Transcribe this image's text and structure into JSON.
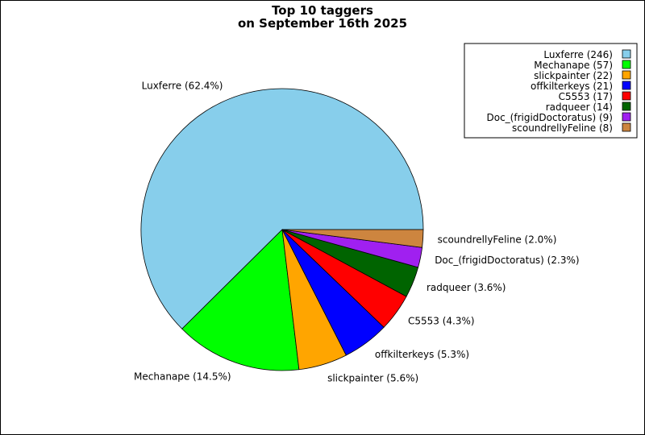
{
  "chart_data": {
    "type": "pie",
    "title_line1": "Top 10 taggers",
    "title_line2": "on September 16th 2025",
    "slices": [
      {
        "name": "Luxferre",
        "value": 246,
        "percent": "62.4%",
        "color": "#87CEEB"
      },
      {
        "name": "Mechanape",
        "value": 57,
        "percent": "14.5%",
        "color": "#00FF00"
      },
      {
        "name": "slickpainter",
        "value": 22,
        "percent": "5.6%",
        "color": "#FFA500"
      },
      {
        "name": "offkilterkeys",
        "value": 21,
        "percent": "5.3%",
        "color": "#0000FF"
      },
      {
        "name": "C5553",
        "value": 17,
        "percent": "4.3%",
        "color": "#FF0000"
      },
      {
        "name": "radqueer",
        "value": 14,
        "percent": "3.6%",
        "color": "#006400"
      },
      {
        "name": "Doc_(frigidDoctoratus)",
        "value": 9,
        "percent": "2.3%",
        "color": "#A020F0"
      },
      {
        "name": "scoundrellyFeline",
        "value": 8,
        "percent": "2.0%",
        "color": "#CD853F"
      }
    ],
    "legend_placement": "top-right"
  }
}
